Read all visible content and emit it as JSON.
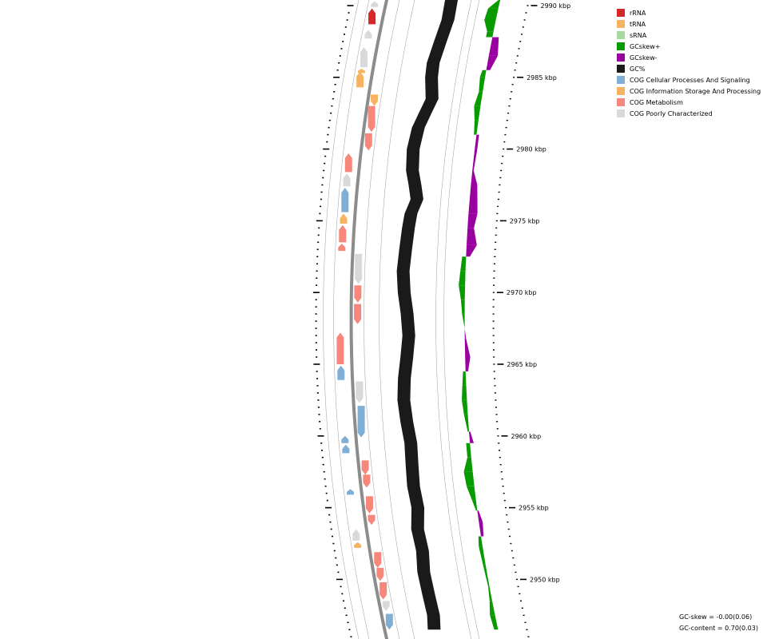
{
  "legend": {
    "items": [
      {
        "label": "rRNA",
        "color": "#d62728"
      },
      {
        "label": "tRNA",
        "color": "#f7b262"
      },
      {
        "label": "sRNA",
        "color": "#a6dba0"
      },
      {
        "label": "GCskew+",
        "color": "#079b00"
      },
      {
        "label": "GCskew-",
        "color": "#9900a0"
      },
      {
        "label": "GC%",
        "color": "#1a1a1a"
      },
      {
        "label": "COG Cellular Processes And Signaling",
        "color": "#80afd6"
      },
      {
        "label": "COG Information Storage And Processing",
        "color": "#f7b262"
      },
      {
        "label": "COG Metabolism",
        "color": "#f7877a"
      },
      {
        "label": "COG Poorly Characterized",
        "color": "#d9d9d9"
      }
    ]
  },
  "axis": {
    "unit": "kbp",
    "ticks": [
      "2990 kbp",
      "2985 kbp",
      "2980 kbp",
      "2975 kbp",
      "2970 kbp",
      "2965 kbp",
      "2960 kbp",
      "2955 kbp",
      "2950 kbp"
    ]
  },
  "stats": {
    "gc_skew": "GC-skew = -0.00(0.06)",
    "gc_content": "GC-content = 0.70(0.03)"
  },
  "colors": {
    "gc": "#1a1a1a",
    "skew_pos": "#079b00",
    "skew_neg": "#9900a0",
    "backbone": "#8c8c8c",
    "ring": "#aaaaaa"
  },
  "chart_data": {
    "type": "genome_map",
    "region_kbp": [
      2946.5,
      2990.5
    ],
    "features": [
      {
        "start": 2989.9,
        "end": 2990.3,
        "strand": "-",
        "category": "COG Poorly Characterized"
      },
      {
        "start": 2988.7,
        "end": 2989.8,
        "strand": "-",
        "category": "rRNA"
      },
      {
        "start": 2987.7,
        "end": 2988.3,
        "strand": "-",
        "category": "COG Poorly Characterized"
      },
      {
        "start": 2985.7,
        "end": 2987.1,
        "strand": "-",
        "category": "COG Poorly Characterized"
      },
      {
        "start": 2985.3,
        "end": 2985.6,
        "strand": "-",
        "category": "tRNA"
      },
      {
        "start": 2984.3,
        "end": 2985.4,
        "strand": "-",
        "category": "tRNA"
      },
      {
        "start": 2983.0,
        "end": 2983.8,
        "strand": "+",
        "category": "tRNA"
      },
      {
        "start": 2981.2,
        "end": 2983.0,
        "strand": "+",
        "category": "COG Metabolism"
      },
      {
        "start": 2979.9,
        "end": 2981.1,
        "strand": "+",
        "category": "COG Metabolism"
      },
      {
        "start": 2978.4,
        "end": 2979.7,
        "strand": "-",
        "category": "COG Metabolism"
      },
      {
        "start": 2977.4,
        "end": 2978.3,
        "strand": "-",
        "category": "COG Poorly Characterized"
      },
      {
        "start": 2975.6,
        "end": 2977.3,
        "strand": "-",
        "category": "COG Cellular Processes And Signaling"
      },
      {
        "start": 2974.8,
        "end": 2975.5,
        "strand": "-",
        "category": "tRNA"
      },
      {
        "start": 2973.5,
        "end": 2974.7,
        "strand": "-",
        "category": "COG Metabolism"
      },
      {
        "start": 2972.9,
        "end": 2973.4,
        "strand": "-",
        "category": "COG Metabolism"
      },
      {
        "start": 2970.6,
        "end": 2972.7,
        "strand": "+",
        "category": "COG Poorly Characterized"
      },
      {
        "start": 2969.3,
        "end": 2970.5,
        "strand": "+",
        "category": "COG Metabolism"
      },
      {
        "start": 2967.8,
        "end": 2969.2,
        "strand": "+",
        "category": "COG Metabolism"
      },
      {
        "start": 2965.0,
        "end": 2967.2,
        "strand": "-",
        "category": "COG Metabolism"
      },
      {
        "start": 2963.9,
        "end": 2964.9,
        "strand": "-",
        "category": "COG Cellular Processes And Signaling"
      },
      {
        "start": 2962.3,
        "end": 2963.8,
        "strand": "+",
        "category": "COG Poorly Characterized"
      },
      {
        "start": 2959.9,
        "end": 2962.1,
        "strand": "+",
        "category": "COG Cellular Processes And Signaling"
      },
      {
        "start": 2959.5,
        "end": 2960.0,
        "strand": "-",
        "category": "COG Cellular Processes And Signaling"
      },
      {
        "start": 2958.8,
        "end": 2959.4,
        "strand": "-",
        "category": "COG Cellular Processes And Signaling"
      },
      {
        "start": 2957.3,
        "end": 2958.3,
        "strand": "+",
        "category": "COG Metabolism"
      },
      {
        "start": 2956.4,
        "end": 2957.3,
        "strand": "+",
        "category": "COG Metabolism"
      },
      {
        "start": 2955.9,
        "end": 2956.3,
        "strand": "-",
        "category": "COG Cellular Processes And Signaling"
      },
      {
        "start": 2954.6,
        "end": 2955.8,
        "strand": "+",
        "category": "COG Metabolism"
      },
      {
        "start": 2953.8,
        "end": 2954.5,
        "strand": "+",
        "category": "COG Metabolism"
      },
      {
        "start": 2952.7,
        "end": 2953.5,
        "strand": "-",
        "category": "COG Poorly Characterized"
      },
      {
        "start": 2952.2,
        "end": 2952.6,
        "strand": "-",
        "category": "tRNA"
      },
      {
        "start": 2950.8,
        "end": 2951.9,
        "strand": "+",
        "category": "COG Metabolism"
      },
      {
        "start": 2949.9,
        "end": 2950.8,
        "strand": "+",
        "category": "COG Metabolism"
      },
      {
        "start": 2948.6,
        "end": 2949.8,
        "strand": "+",
        "category": "COG Metabolism"
      },
      {
        "start": 2947.8,
        "end": 2948.5,
        "strand": "+",
        "category": "COG Poorly Characterized"
      },
      {
        "start": 2946.5,
        "end": 2947.6,
        "strand": "+",
        "category": "COG Cellular Processes And Signaling"
      }
    ],
    "gc_content": [
      {
        "kbp": 2990.5,
        "value": 0.045
      },
      {
        "kbp": 2989.0,
        "value": 0.05
      },
      {
        "kbp": 2987.5,
        "value": 0.03
      },
      {
        "kbp": 2986.0,
        "value": 0.01
      },
      {
        "kbp": 2985.0,
        "value": 0.015
      },
      {
        "kbp": 2983.5,
        "value": 0.04
      },
      {
        "kbp": 2982.5,
        "value": 0.01
      },
      {
        "kbp": 2981.5,
        "value": -0.02
      },
      {
        "kbp": 2980.0,
        "value": -0.035
      },
      {
        "kbp": 2978.5,
        "value": -0.025
      },
      {
        "kbp": 2977.5,
        "value": 0.0
      },
      {
        "kbp": 2976.5,
        "value": 0.02
      },
      {
        "kbp": 2975.5,
        "value": -0.01
      },
      {
        "kbp": 2974.5,
        "value": -0.02
      },
      {
        "kbp": 2973.0,
        "value": -0.03
      },
      {
        "kbp": 2971.5,
        "value": -0.04
      },
      {
        "kbp": 2970.0,
        "value": -0.03
      },
      {
        "kbp": 2968.5,
        "value": -0.01
      },
      {
        "kbp": 2967.0,
        "value": 0.0
      },
      {
        "kbp": 2965.5,
        "value": -0.015
      },
      {
        "kbp": 2964.0,
        "value": -0.035
      },
      {
        "kbp": 2962.5,
        "value": -0.045
      },
      {
        "kbp": 2961.0,
        "value": -0.035
      },
      {
        "kbp": 2959.5,
        "value": -0.02
      },
      {
        "kbp": 2958.0,
        "value": -0.025
      },
      {
        "kbp": 2956.5,
        "value": -0.03
      },
      {
        "kbp": 2955.0,
        "value": -0.02
      },
      {
        "kbp": 2953.5,
        "value": -0.04
      },
      {
        "kbp": 2952.0,
        "value": -0.03
      },
      {
        "kbp": 2950.5,
        "value": -0.045
      },
      {
        "kbp": 2949.0,
        "value": -0.04
      },
      {
        "kbp": 2947.5,
        "value": -0.035
      },
      {
        "kbp": 2946.5,
        "value": -0.05
      }
    ],
    "gc_skew": [
      {
        "kbp": 2990.5,
        "value": 0.0
      },
      {
        "kbp": 2989.8,
        "value": 0.08
      },
      {
        "kbp": 2989.0,
        "value": 0.09
      },
      {
        "kbp": 2988.2,
        "value": 0.05
      },
      {
        "kbp": 2987.8,
        "value": -0.05
      },
      {
        "kbp": 2986.5,
        "value": -0.07
      },
      {
        "kbp": 2985.5,
        "value": -0.03
      },
      {
        "kbp": 2985.0,
        "value": 0.04
      },
      {
        "kbp": 2984.0,
        "value": 0.03
      },
      {
        "kbp": 2983.0,
        "value": 0.05
      },
      {
        "kbp": 2982.0,
        "value": 0.03
      },
      {
        "kbp": 2981.0,
        "value": -0.02
      },
      {
        "kbp": 2980.0,
        "value": -0.02
      },
      {
        "kbp": 2978.5,
        "value": -0.01
      },
      {
        "kbp": 2977.5,
        "value": -0.05
      },
      {
        "kbp": 2975.5,
        "value": -0.07
      },
      {
        "kbp": 2974.5,
        "value": -0.05
      },
      {
        "kbp": 2973.3,
        "value": -0.08
      },
      {
        "kbp": 2972.5,
        "value": -0.03
      },
      {
        "kbp": 2971.5,
        "value": 0.04
      },
      {
        "kbp": 2970.5,
        "value": 0.05
      },
      {
        "kbp": 2969.5,
        "value": 0.03
      },
      {
        "kbp": 2968.5,
        "value": 0.02
      },
      {
        "kbp": 2967.5,
        "value": 0.0
      },
      {
        "kbp": 2966.8,
        "value": -0.01
      },
      {
        "kbp": 2965.5,
        "value": -0.04
      },
      {
        "kbp": 2964.5,
        "value": -0.02
      },
      {
        "kbp": 2963.5,
        "value": 0.03
      },
      {
        "kbp": 2962.5,
        "value": 0.04
      },
      {
        "kbp": 2961.5,
        "value": 0.03
      },
      {
        "kbp": 2960.3,
        "value": 0.01
      },
      {
        "kbp": 2959.5,
        "value": -0.03
      },
      {
        "kbp": 2958.5,
        "value": 0.03
      },
      {
        "kbp": 2957.5,
        "value": 0.07
      },
      {
        "kbp": 2956.5,
        "value": 0.06
      },
      {
        "kbp": 2955.5,
        "value": 0.03
      },
      {
        "kbp": 2954.8,
        "value": 0.01
      },
      {
        "kbp": 2954.0,
        "value": -0.03
      },
      {
        "kbp": 2953.0,
        "value": -0.02
      },
      {
        "kbp": 2952.3,
        "value": 0.03
      },
      {
        "kbp": 2951.0,
        "value": 0.02
      },
      {
        "kbp": 2949.5,
        "value": 0.01
      },
      {
        "kbp": 2948.5,
        "value": 0.02
      },
      {
        "kbp": 2947.5,
        "value": 0.04
      },
      {
        "kbp": 2946.5,
        "value": 0.03
      }
    ]
  }
}
